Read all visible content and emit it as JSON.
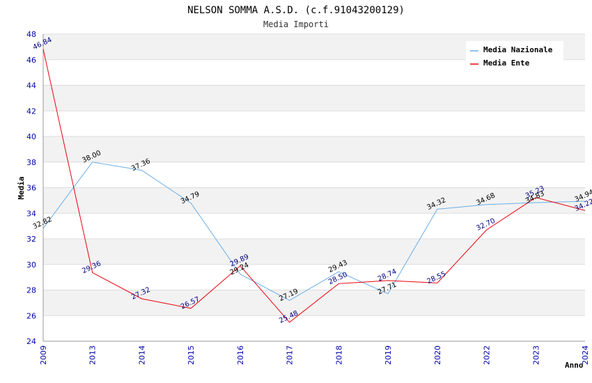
{
  "chart_data": {
    "type": "line",
    "title": "NELSON SOMMA A.S.D. (c.f.91043200129)",
    "subtitle": "Media Importi",
    "xlabel": "Anno",
    "ylabel": "Media",
    "ylim": [
      24,
      48
    ],
    "yticks": [
      24,
      26,
      28,
      30,
      32,
      34,
      36,
      38,
      40,
      42,
      44,
      46,
      48
    ],
    "categories": [
      "2009",
      "2013",
      "2014",
      "2015",
      "2016",
      "2017",
      "2018",
      "2019",
      "2020",
      "2022",
      "2023",
      "2024"
    ],
    "grid": "horizontal bands",
    "legend_position": "top-right",
    "series": [
      {
        "name": "Media Nazionale",
        "color": "#6aaee6",
        "label_color": "#000000",
        "values": [
          32.82,
          38.0,
          37.36,
          34.79,
          29.24,
          27.19,
          29.43,
          27.71,
          34.32,
          34.68,
          34.83,
          34.94
        ],
        "labels": [
          "32.82",
          "38.00",
          "37.36",
          "34.79",
          "29.24",
          "27.19",
          "29.43",
          "27.71",
          "34.32",
          "34.68",
          "34.83",
          "34.94"
        ]
      },
      {
        "name": "Media Ente",
        "color": "#e8000b",
        "label_color": "#000080",
        "values": [
          46.84,
          29.36,
          27.32,
          26.57,
          29.89,
          25.48,
          28.5,
          28.74,
          28.55,
          32.7,
          35.23,
          34.22
        ],
        "labels": [
          "46.84",
          "29.36",
          "27.32",
          "26.57",
          "29.89",
          "25.48",
          "28.50",
          "28.74",
          "28.55",
          "32.70",
          "35.23",
          "34.22"
        ]
      }
    ]
  }
}
